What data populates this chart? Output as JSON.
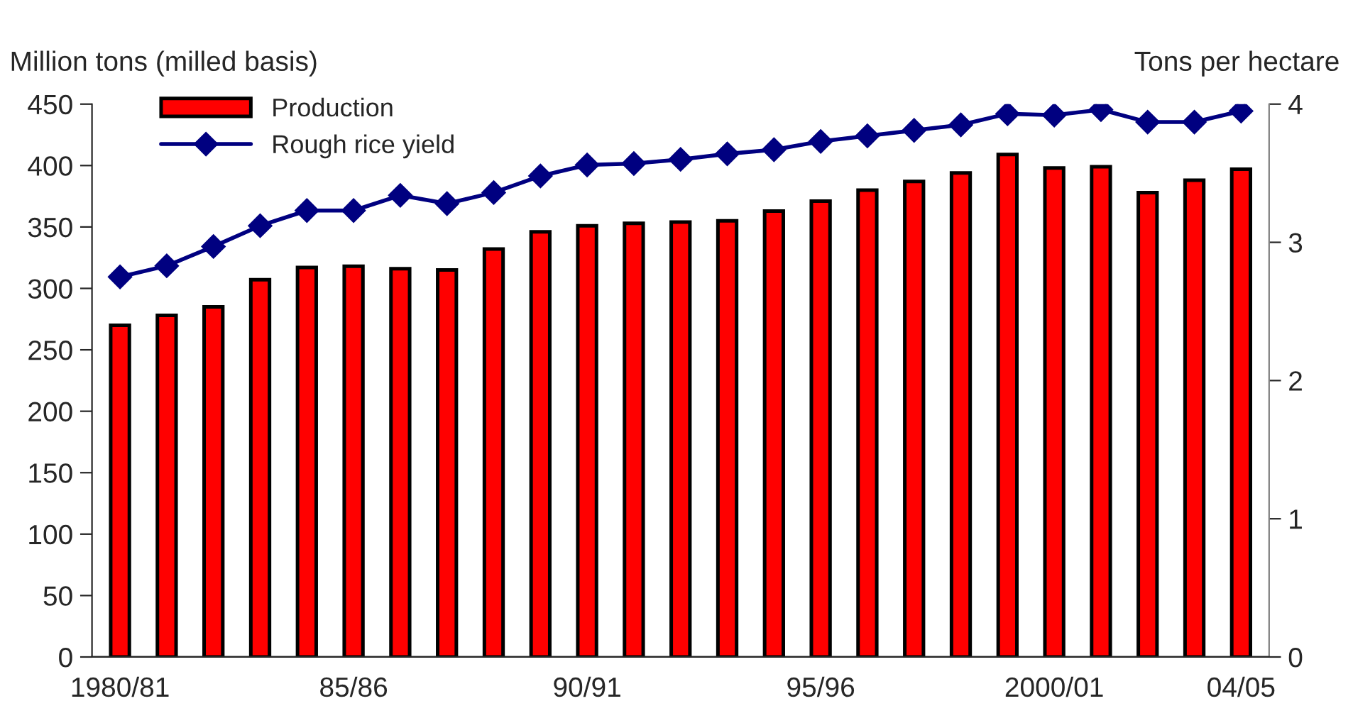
{
  "chart_data": {
    "type": "bar",
    "ylabel": "Million tons (milled basis)",
    "y2label": "Tons per hectare",
    "categories": [
      "1980/81",
      null,
      null,
      null,
      null,
      "85/86",
      null,
      null,
      null,
      null,
      "90/91",
      null,
      null,
      null,
      null,
      "95/96",
      null,
      null,
      null,
      null,
      "2000/01",
      null,
      null,
      null,
      "04/05"
    ],
    "series": [
      {
        "name": "Production",
        "color": "#ff0000",
        "values": [
          270,
          278,
          285,
          307,
          317,
          318,
          316,
          315,
          332,
          346,
          351,
          353,
          354,
          355,
          363,
          371,
          380,
          387,
          394,
          409,
          398,
          399,
          378,
          388,
          397
        ]
      },
      {
        "name": "Rough rice yield",
        "type": "line",
        "axis": "y2",
        "color": "#000080",
        "marker": "diamond",
        "values": [
          2.75,
          2.83,
          2.97,
          3.12,
          3.23,
          3.23,
          3.34,
          3.28,
          3.36,
          3.48,
          3.56,
          3.57,
          3.6,
          3.64,
          3.67,
          3.73,
          3.77,
          3.81,
          3.85,
          3.93,
          3.92,
          3.96,
          3.87,
          3.87,
          3.95
        ]
      }
    ],
    "ylim": [
      0,
      450
    ],
    "yticks": [
      0,
      50,
      100,
      150,
      200,
      250,
      300,
      350,
      400,
      450
    ],
    "y2lim": [
      0,
      4
    ],
    "y2ticks": [
      0,
      1,
      2,
      3,
      4
    ],
    "grid": false,
    "legend": "top left"
  }
}
